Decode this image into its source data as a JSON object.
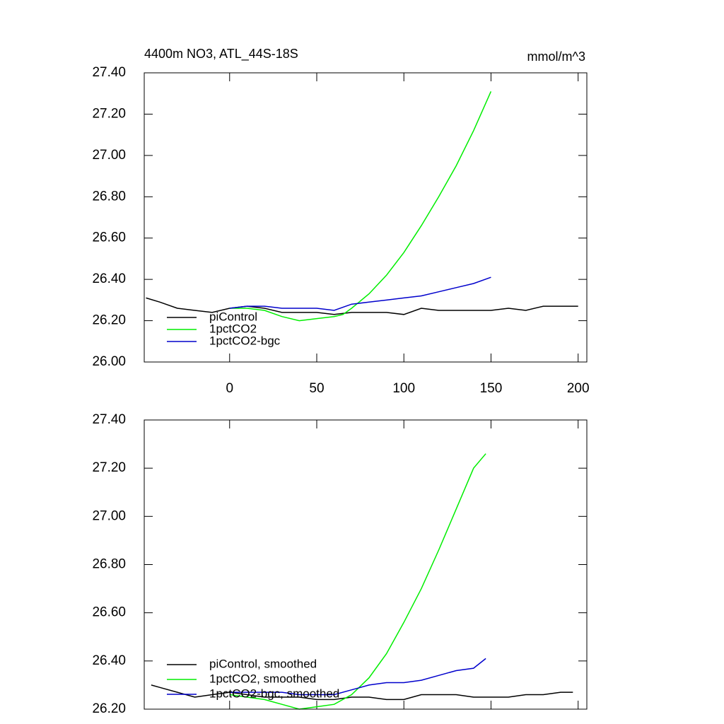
{
  "chart_data": [
    {
      "type": "line",
      "title": "4400m NO3, ATL_44S-18S",
      "units": "mmol/m^3",
      "xlim": [
        -49,
        205
      ],
      "ylim": [
        26.0,
        27.4
      ],
      "xticks": [
        0,
        50,
        100,
        150,
        200
      ],
      "yticks": [
        {
          "value": 26.0,
          "label": "26.00"
        },
        {
          "value": 26.2,
          "label": "26.20"
        },
        {
          "value": 26.4,
          "label": "26.40"
        },
        {
          "value": 26.6,
          "label": "26.60"
        },
        {
          "value": 26.8,
          "label": "26.80"
        },
        {
          "value": 27.0,
          "label": "27.00"
        },
        {
          "value": 27.2,
          "label": "27.20"
        },
        {
          "value": 27.4,
          "label": "27.40"
        }
      ],
      "legend": "lower left",
      "series": [
        {
          "name": "piControl",
          "color": "#000000",
          "x": [
            -48,
            -40,
            -30,
            -20,
            -10,
            0,
            10,
            20,
            30,
            40,
            50,
            60,
            70,
            80,
            90,
            100,
            110,
            120,
            130,
            140,
            150,
            160,
            170,
            180,
            190,
            200
          ],
          "values": [
            26.31,
            26.29,
            26.26,
            26.25,
            26.24,
            26.26,
            26.27,
            26.26,
            26.24,
            26.24,
            26.24,
            26.23,
            26.24,
            26.24,
            26.24,
            26.23,
            26.26,
            26.25,
            26.25,
            26.25,
            26.25,
            26.26,
            26.25,
            26.27,
            26.27,
            26.27
          ]
        },
        {
          "name": "1pctCO2",
          "color": "#00ee00",
          "x": [
            0,
            10,
            20,
            30,
            40,
            50,
            60,
            65,
            70,
            80,
            90,
            100,
            110,
            120,
            130,
            140,
            150
          ],
          "values": [
            26.26,
            26.26,
            26.25,
            26.22,
            26.2,
            26.21,
            26.22,
            26.23,
            26.26,
            26.33,
            26.42,
            26.53,
            26.66,
            26.8,
            26.95,
            27.12,
            27.31
          ]
        },
        {
          "name": "1pctCO2-bgc",
          "color": "#0000cc",
          "x": [
            0,
            10,
            20,
            30,
            40,
            50,
            60,
            70,
            80,
            90,
            100,
            110,
            120,
            130,
            140,
            150
          ],
          "values": [
            26.26,
            26.27,
            26.27,
            26.26,
            26.26,
            26.26,
            26.25,
            26.28,
            26.29,
            26.3,
            26.31,
            26.32,
            26.34,
            26.36,
            26.38,
            26.41
          ]
        }
      ]
    },
    {
      "type": "line",
      "xlim": [
        -49,
        205
      ],
      "ylim": [
        26.2,
        27.4
      ],
      "xticks": [
        0,
        50,
        100,
        150,
        200
      ],
      "yticks": [
        {
          "value": 26.2,
          "label": "26.20"
        },
        {
          "value": 26.4,
          "label": "26.40"
        },
        {
          "value": 26.6,
          "label": "26.60"
        },
        {
          "value": 26.8,
          "label": "26.80"
        },
        {
          "value": 27.0,
          "label": "27.00"
        },
        {
          "value": 27.2,
          "label": "27.20"
        },
        {
          "value": 27.4,
          "label": "27.40"
        }
      ],
      "legend": "lower left",
      "series": [
        {
          "name": "piControl, smoothed",
          "color": "#000000",
          "x": [
            -45,
            -40,
            -30,
            -20,
            -10,
            0,
            10,
            20,
            30,
            40,
            50,
            60,
            70,
            80,
            90,
            100,
            110,
            120,
            130,
            140,
            150,
            160,
            170,
            180,
            190,
            197
          ],
          "values": [
            26.3,
            26.29,
            26.27,
            26.25,
            26.26,
            26.27,
            26.26,
            26.25,
            26.25,
            26.25,
            26.24,
            26.24,
            26.25,
            26.25,
            26.24,
            26.24,
            26.26,
            26.26,
            26.26,
            26.25,
            26.25,
            26.25,
            26.26,
            26.26,
            26.27,
            26.27
          ]
        },
        {
          "name": "1pctCO2, smoothed",
          "color": "#00ee00",
          "x": [
            0,
            10,
            20,
            30,
            40,
            50,
            60,
            70,
            80,
            90,
            100,
            110,
            120,
            130,
            140,
            147
          ],
          "values": [
            26.26,
            26.25,
            26.24,
            26.22,
            26.2,
            26.21,
            26.22,
            26.26,
            26.33,
            26.43,
            26.56,
            26.7,
            26.86,
            27.03,
            27.2,
            27.26
          ]
        },
        {
          "name": "1pctCO2-bgc, smoothed",
          "color": "#0000cc",
          "x": [
            0,
            10,
            20,
            30,
            40,
            50,
            60,
            70,
            80,
            90,
            100,
            110,
            120,
            130,
            140,
            147
          ],
          "values": [
            26.27,
            26.27,
            26.27,
            26.27,
            26.26,
            26.26,
            26.26,
            26.28,
            26.3,
            26.31,
            26.31,
            26.32,
            26.34,
            26.36,
            26.37,
            26.41
          ]
        }
      ]
    }
  ]
}
